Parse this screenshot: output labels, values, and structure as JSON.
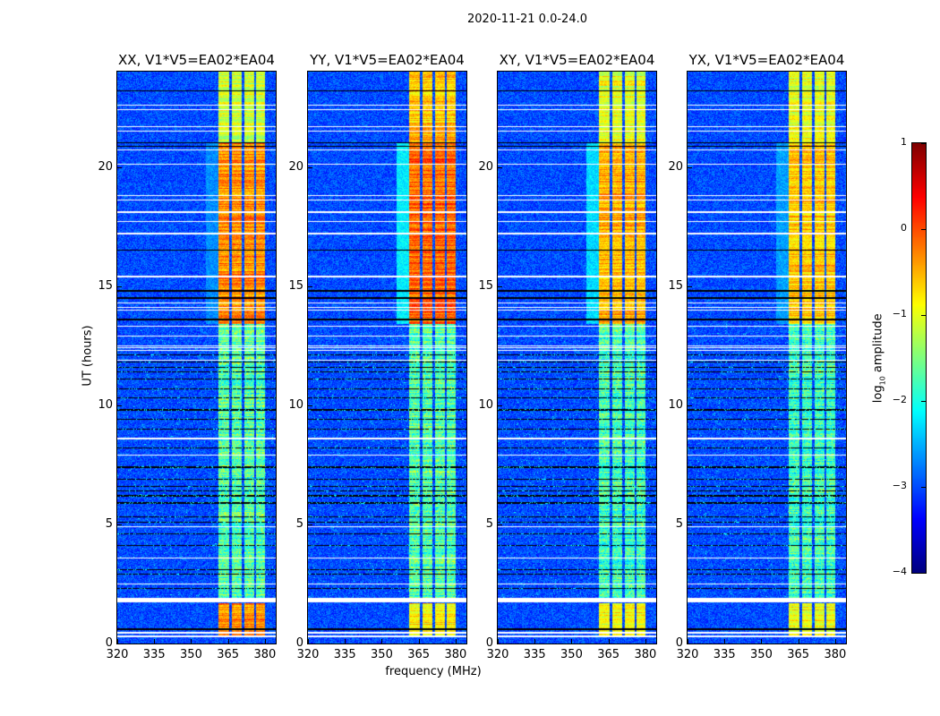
{
  "chart_data": {
    "type": "heatmap",
    "title": "2020-11-21 0.0-24.0",
    "xlabel": "frequency (MHz)",
    "ylabel": "UT (hours)",
    "xlim": [
      320,
      384.4
    ],
    "ylim": [
      0,
      24
    ],
    "xticks": [
      "320",
      "335",
      "350",
      "365",
      "380"
    ],
    "xtick_values": [
      320,
      335,
      350,
      365,
      380
    ],
    "yticks": [
      "0",
      "5",
      "10",
      "15",
      "20"
    ],
    "ytick_values": [
      0,
      5,
      10,
      15,
      20
    ],
    "colorbar": {
      "label_main": "log",
      "label_sub": "10",
      "label_tail": " amplitude",
      "range": [
        -4,
        1
      ],
      "ticks": [
        "1",
        "0",
        "−1",
        "−2",
        "−3",
        "−4"
      ],
      "tick_values": [
        1,
        0,
        -1,
        -2,
        -3,
        -4
      ],
      "colormap": "jet"
    },
    "background_level": -3.0,
    "emission_subbands_mhz": [
      [
        361,
        365.5
      ],
      [
        366.5,
        370.5
      ],
      [
        371.5,
        375.5
      ],
      [
        376.5,
        380
      ]
    ],
    "flagged_rows_hours": [
      0.3,
      0.45,
      1.75,
      1.8,
      1.85,
      1.9,
      2.5,
      3.6,
      4.9,
      7.9,
      8.6,
      11.9,
      12.3,
      12.4,
      12.5,
      12.9,
      13.3,
      14.0,
      14.1,
      14.3,
      15.4,
      17.2,
      17.7,
      18.1,
      18.6,
      18.8,
      20.1,
      20.7,
      21.5,
      21.7,
      22.4,
      22.6
    ],
    "dropout_rows_hours": [
      0.6,
      2.3,
      2.9,
      3.1,
      4.1,
      4.6,
      5.1,
      5.3,
      5.9,
      6.2,
      6.4,
      6.6,
      6.9,
      7.4,
      8.2,
      9.0,
      9.4,
      9.8,
      10.3,
      10.7,
      11.1,
      11.4,
      11.6,
      11.8,
      12.1,
      13.6,
      14.5,
      14.8,
      16.5,
      20.85,
      21.0,
      23.2
    ],
    "panels": [
      {
        "title": "XX, V1*V5=EA02*EA04",
        "segments": [
          {
            "from": 0.3,
            "to": 1.7,
            "level": -0.3
          },
          {
            "from": 1.9,
            "to": 13.4,
            "level": -1.7
          },
          {
            "from": 13.4,
            "to": 21.0,
            "level": -0.3
          },
          {
            "from": 21.0,
            "to": 24,
            "level": -1.1
          }
        ],
        "halo_level": -2.7
      },
      {
        "title": "YY, V1*V5=EA02*EA04",
        "segments": [
          {
            "from": 0.3,
            "to": 1.7,
            "level": -0.8
          },
          {
            "from": 1.9,
            "to": 13.4,
            "level": -1.7
          },
          {
            "from": 13.4,
            "to": 21.0,
            "level": -0.1
          },
          {
            "from": 21.0,
            "to": 24,
            "level": -0.6
          }
        ],
        "halo_level": -2.2
      },
      {
        "title": "XY, V1*V5=EA02*EA04",
        "segments": [
          {
            "from": 0.3,
            "to": 1.7,
            "level": -0.9
          },
          {
            "from": 1.9,
            "to": 13.4,
            "level": -1.8
          },
          {
            "from": 13.4,
            "to": 21.0,
            "level": -0.5
          },
          {
            "from": 21.0,
            "to": 24,
            "level": -1.0
          }
        ],
        "halo_level": -2.3
      },
      {
        "title": "YX, V1*V5=EA02*EA04",
        "segments": [
          {
            "from": 0.3,
            "to": 1.7,
            "level": -0.9
          },
          {
            "from": 1.9,
            "to": 13.4,
            "level": -1.8
          },
          {
            "from": 13.4,
            "to": 21.0,
            "level": -0.6
          },
          {
            "from": 21.0,
            "to": 24,
            "level": -1.0
          }
        ],
        "halo_level": -2.6
      }
    ]
  }
}
